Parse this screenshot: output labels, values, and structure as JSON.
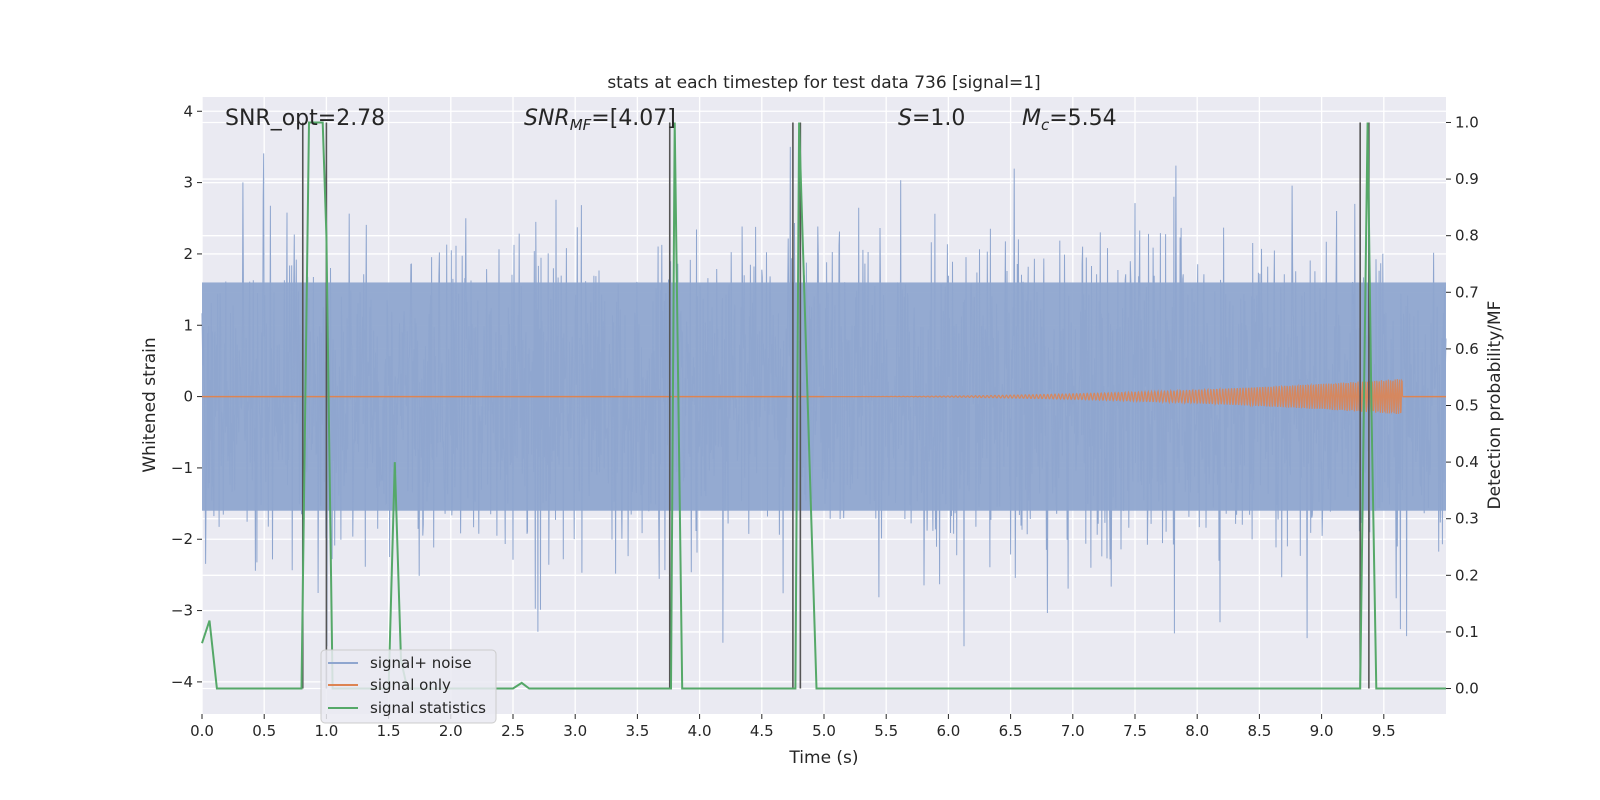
{
  "chart_data": {
    "type": "line",
    "title": "stats at each timestep for test data 736 [signal=1]",
    "xlabel": "Time (s)",
    "ylabel": "Whitened strain",
    "ylabel_right": "Detection probability/MF",
    "xlim": [
      0,
      10
    ],
    "ylim": [
      -4.45,
      4.2
    ],
    "ylim_right": [
      -0.045,
      1.045
    ],
    "xticks": [
      0,
      0.5,
      1,
      1.5,
      2,
      2.5,
      3,
      3.5,
      4,
      4.5,
      5,
      5.5,
      6,
      6.5,
      7,
      7.5,
      8,
      8.5,
      9,
      9.5
    ],
    "xtick_labels": [
      "0.0",
      "0.5",
      "1.0",
      "1.5",
      "2.0",
      "2.5",
      "3.0",
      "3.5",
      "4.0",
      "4.5",
      "5.0",
      "5.5",
      "6.0",
      "6.5",
      "7.0",
      "7.5",
      "8.0",
      "8.5",
      "9.0",
      "9.5"
    ],
    "yticks_left": [
      -4,
      -3,
      -2,
      -1,
      0,
      1,
      2,
      3,
      4
    ],
    "ytick_labels_left": [
      "−4",
      "−3",
      "−2",
      "−1",
      "0",
      "1",
      "2",
      "3",
      "4"
    ],
    "yticks_right": [
      0.0,
      0.1,
      0.2,
      0.3,
      0.4,
      0.5,
      0.6,
      0.7,
      0.8,
      0.9,
      1.0
    ],
    "ytick_labels_right": [
      "0.0",
      "0.1",
      "0.2",
      "0.3",
      "0.4",
      "0.5",
      "0.6",
      "0.7",
      "0.8",
      "0.9",
      "1.0"
    ],
    "grid": true,
    "legend_position": "lower-left",
    "annotations": [
      {
        "text": "SNR_opt=2.78"
      },
      {
        "base": "SNR",
        "sub": "MF",
        "rest": "=[4.07]"
      },
      {
        "base": "S",
        "sub": "",
        "rest": "=1.0"
      },
      {
        "base": "M",
        "sub": "c",
        "rest": "=5.54"
      }
    ],
    "series": [
      {
        "name": "signal+ noise",
        "color": "#8fa6cf",
        "axis": "left",
        "kind": "noise",
        "typical_amplitude": 1.6,
        "peak_amplitude": 3.5
      },
      {
        "name": "signal only",
        "color": "#dd8452",
        "axis": "left",
        "kind": "chirp",
        "start": 5.0,
        "end": 9.65,
        "peak_amplitude": 0.25
      },
      {
        "name": "signal statistics",
        "color": "#55a868",
        "axis": "right",
        "x": [
          0,
          0.06,
          0.12,
          0.8,
          0.86,
          0.97,
          1.0,
          1.05,
          1.5,
          1.55,
          1.6,
          1.65,
          2.5,
          2.57,
          2.63,
          3.77,
          3.8,
          3.86,
          4.77,
          4.8,
          4.87,
          4.94,
          9.31,
          9.37,
          9.4,
          9.44,
          10.0
        ],
        "y": [
          0.08,
          0.12,
          0.0,
          0.0,
          1.0,
          1.0,
          0.8,
          0.0,
          0.0,
          0.4,
          0.05,
          0.0,
          0.0,
          0.01,
          0.0,
          0.0,
          1.0,
          0.0,
          0.0,
          1.0,
          0.5,
          0.0,
          0.0,
          1.0,
          0.5,
          0.0,
          0.0
        ]
      }
    ],
    "vertical_markers": {
      "color": "#555555",
      "x": [
        0.81,
        1.0,
        3.76,
        4.75,
        4.81,
        9.31,
        9.38
      ]
    }
  }
}
